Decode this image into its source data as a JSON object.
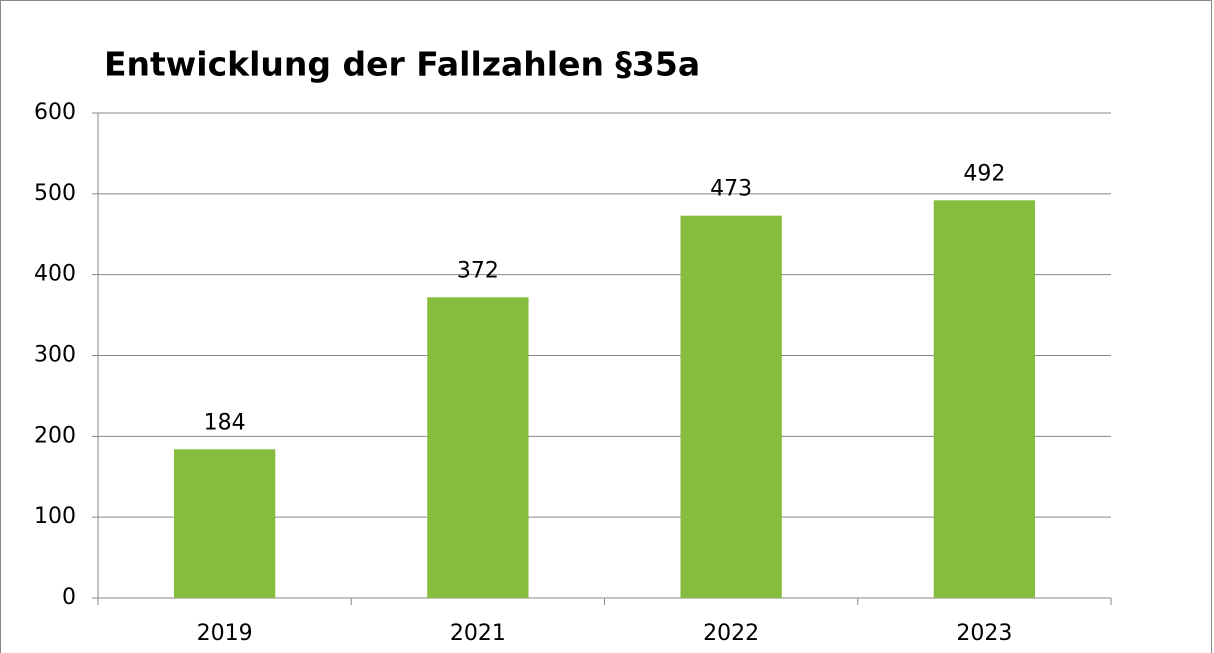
{
  "chart_data": {
    "type": "bar",
    "title": "Entwicklung der Fallzahlen §35a",
    "categories": [
      "2019",
      "2021",
      "2022",
      "2023"
    ],
    "values": [
      184,
      372,
      473,
      492
    ],
    "color": "#86bd3e",
    "ylim": [
      0,
      600
    ],
    "yticks": [
      0,
      100,
      200,
      300,
      400,
      500,
      600
    ],
    "grid": true
  }
}
